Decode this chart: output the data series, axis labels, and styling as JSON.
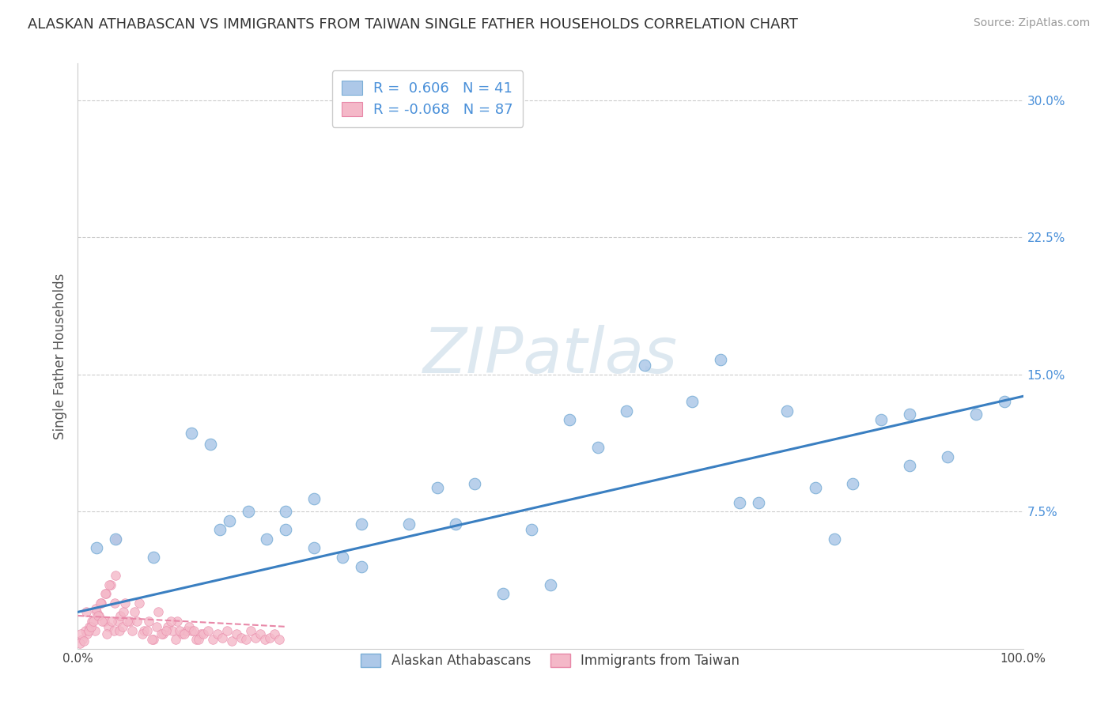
{
  "title": "ALASKAN ATHABASCAN VS IMMIGRANTS FROM TAIWAN SINGLE FATHER HOUSEHOLDS CORRELATION CHART",
  "source": "Source: ZipAtlas.com",
  "ylabel": "Single Father Households",
  "background_color": "#ffffff",
  "grid_color": "#cccccc",
  "blue_color": "#adc8e8",
  "blue_edge": "#7aaed6",
  "pink_color": "#f4b8c8",
  "pink_edge": "#e888a8",
  "regression_blue": "#3a7fc1",
  "regression_pink": "#e888a8",
  "watermark_color": "#dde8f0",
  "blue_label": "Alaskan Athabascans",
  "pink_label": "Immigrants from Taiwan",
  "blue_scatter_x": [
    0.02,
    0.04,
    0.08,
    0.12,
    0.14,
    0.16,
    0.18,
    0.2,
    0.22,
    0.25,
    0.28,
    0.3,
    0.35,
    0.4,
    0.42,
    0.45,
    0.5,
    0.55,
    0.6,
    0.65,
    0.7,
    0.72,
    0.75,
    0.8,
    0.85,
    0.88,
    0.92,
    0.95,
    0.98,
    0.15,
    0.25,
    0.52,
    0.68,
    0.82,
    0.38,
    0.48,
    0.22,
    0.78,
    0.58,
    0.88,
    0.3
  ],
  "blue_scatter_y": [
    0.055,
    0.06,
    0.05,
    0.118,
    0.112,
    0.07,
    0.075,
    0.06,
    0.065,
    0.055,
    0.05,
    0.045,
    0.068,
    0.068,
    0.09,
    0.03,
    0.035,
    0.11,
    0.155,
    0.135,
    0.08,
    0.08,
    0.13,
    0.06,
    0.125,
    0.1,
    0.105,
    0.128,
    0.135,
    0.065,
    0.082,
    0.125,
    0.158,
    0.09,
    0.088,
    0.065,
    0.075,
    0.088,
    0.13,
    0.128,
    0.068
  ],
  "pink_scatter_x": [
    0.005,
    0.008,
    0.01,
    0.012,
    0.015,
    0.018,
    0.02,
    0.022,
    0.025,
    0.028,
    0.03,
    0.032,
    0.035,
    0.038,
    0.04,
    0.042,
    0.045,
    0.048,
    0.05,
    0.055,
    0.06,
    0.065,
    0.07,
    0.075,
    0.08,
    0.085,
    0.09,
    0.095,
    0.1,
    0.105,
    0.11,
    0.115,
    0.12,
    0.125,
    0.13,
    0.002,
    0.003,
    0.006,
    0.009,
    0.011,
    0.014,
    0.016,
    0.019,
    0.021,
    0.024,
    0.026,
    0.029,
    0.031,
    0.033,
    0.036,
    0.039,
    0.041,
    0.044,
    0.047,
    0.052,
    0.057,
    0.062,
    0.068,
    0.073,
    0.078,
    0.083,
    0.088,
    0.093,
    0.098,
    0.103,
    0.108,
    0.113,
    0.118,
    0.123,
    0.128,
    0.133,
    0.138,
    0.143,
    0.148,
    0.153,
    0.158,
    0.163,
    0.168,
    0.173,
    0.178,
    0.183,
    0.188,
    0.193,
    0.198,
    0.203,
    0.208,
    0.213
  ],
  "pink_scatter_y": [
    0.005,
    0.01,
    0.008,
    0.012,
    0.015,
    0.01,
    0.02,
    0.018,
    0.025,
    0.015,
    0.03,
    0.012,
    0.035,
    0.01,
    0.04,
    0.015,
    0.018,
    0.02,
    0.025,
    0.015,
    0.02,
    0.025,
    0.01,
    0.015,
    0.005,
    0.02,
    0.008,
    0.012,
    0.01,
    0.015,
    0.008,
    0.01,
    0.01,
    0.005,
    0.008,
    0.003,
    0.008,
    0.004,
    0.02,
    0.01,
    0.012,
    0.015,
    0.022,
    0.018,
    0.025,
    0.015,
    0.03,
    0.008,
    0.035,
    0.015,
    0.025,
    0.06,
    0.01,
    0.012,
    0.015,
    0.01,
    0.015,
    0.008,
    0.01,
    0.005,
    0.012,
    0.008,
    0.01,
    0.015,
    0.005,
    0.01,
    0.008,
    0.012,
    0.01,
    0.005,
    0.008,
    0.01,
    0.005,
    0.008,
    0.006,
    0.01,
    0.004,
    0.008,
    0.006,
    0.005,
    0.01,
    0.006,
    0.008,
    0.005,
    0.006,
    0.008,
    0.005
  ],
  "blue_line_x": [
    0.0,
    1.0
  ],
  "blue_line_y": [
    0.02,
    0.138
  ],
  "pink_line_x": [
    0.0,
    0.22
  ],
  "pink_line_y": [
    0.018,
    0.012
  ],
  "xlim": [
    0.0,
    1.0
  ],
  "ylim": [
    0.0,
    0.32
  ],
  "yticks": [
    0.075,
    0.15,
    0.225,
    0.3
  ],
  "ytick_labels": [
    "7.5%",
    "15.0%",
    "22.5%",
    "30.0%"
  ],
  "xticks": [
    0.0,
    1.0
  ],
  "xtick_labels": [
    "0.0%",
    "100.0%"
  ]
}
